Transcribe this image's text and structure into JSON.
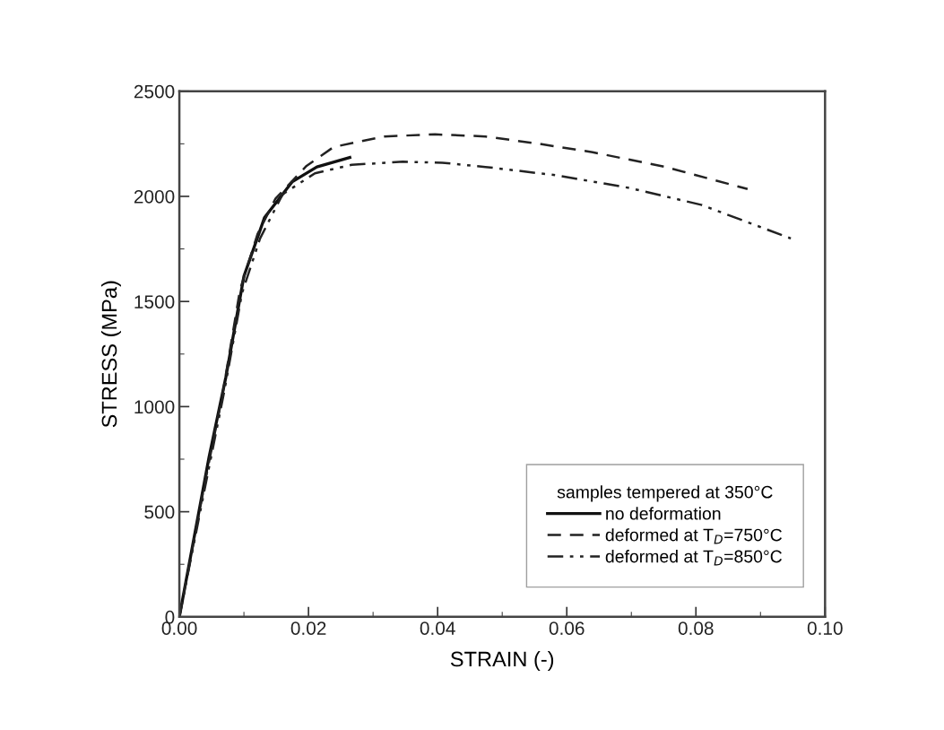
{
  "chart_data": {
    "type": "line",
    "xlabel": "STRAIN (-)",
    "ylabel": "STRESS (MPa)",
    "legend_title": "samples tempered at 350°C",
    "legend": "bottom right",
    "grid": false,
    "xlim": [
      0,
      0.1
    ],
    "ylim": [
      0,
      2500
    ],
    "xticks": [
      {
        "value": 0,
        "label": "0.00"
      },
      {
        "value": 0.02,
        "label": "0.02"
      },
      {
        "value": 0.04,
        "label": "0.04"
      },
      {
        "value": 0.06,
        "label": "0.06"
      },
      {
        "value": 0.08,
        "label": "0.08"
      },
      {
        "value": 0.1,
        "label": "0.10"
      }
    ],
    "yticks": [
      0,
      500,
      1000,
      1500,
      2000,
      2500
    ],
    "series": [
      {
        "name": "no deformation",
        "color": "#111111",
        "line_style": "solid",
        "x": [
          0,
          0.0046,
          0.0072,
          0.01,
          0.0132,
          0.0175,
          0.0213,
          0.0264
        ],
        "values": [
          0,
          760,
          1140,
          1620,
          1900,
          2070,
          2140,
          2185
        ]
      },
      {
        "name": "deformed at T$_{D}$=750°C",
        "color": "#222222",
        "line_style": "dashed",
        "x": [
          0,
          0.004,
          0.0067,
          0.0094,
          0.0121,
          0.0149,
          0.0197,
          0.0239,
          0.0317,
          0.0396,
          0.0474,
          0.0557,
          0.064,
          0.0753,
          0.088
        ],
        "values": [
          0,
          645,
          1060,
          1557,
          1820,
          1990,
          2145,
          2235,
          2285,
          2295,
          2285,
          2250,
          2210,
          2140,
          2035
        ]
      },
      {
        "name": "deformed at T$_{D}$=850°C",
        "color": "#222222",
        "line_style": "dashdotdot",
        "x": [
          0,
          0.004,
          0.007,
          0.0097,
          0.0125,
          0.016,
          0.021,
          0.0267,
          0.0346,
          0.0407,
          0.0474,
          0.0585,
          0.0697,
          0.0808,
          0.0947
        ],
        "values": [
          0,
          620,
          1080,
          1540,
          1800,
          2010,
          2110,
          2150,
          2165,
          2160,
          2140,
          2100,
          2040,
          1960,
          1800
        ]
      }
    ]
  }
}
